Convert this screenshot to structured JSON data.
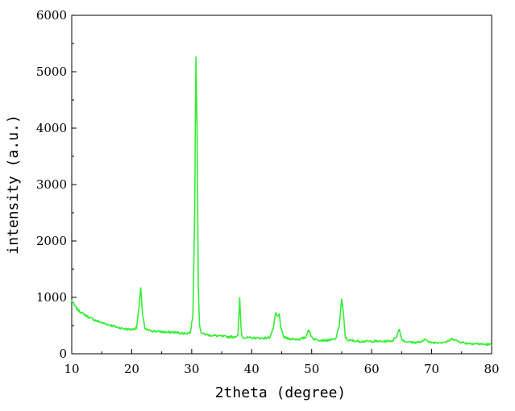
{
  "chart_data": {
    "type": "line",
    "title": "",
    "xlabel": "2theta (degree)",
    "ylabel": "intensity (a.u.)",
    "xlim": [
      10,
      80
    ],
    "ylim": [
      0,
      6000
    ],
    "x_ticks": [
      10,
      20,
      30,
      40,
      50,
      60,
      70,
      80
    ],
    "y_ticks": [
      0,
      1000,
      2000,
      3000,
      4000,
      5000,
      6000
    ],
    "x_tick_labels": [
      "10",
      "20",
      "30",
      "40",
      "50",
      "60",
      "70",
      "80"
    ],
    "y_tick_labels": [
      "0",
      "1000",
      "2000",
      "3000",
      "4000",
      "5000",
      "6000"
    ],
    "grid": false,
    "legend": "none",
    "series": [
      {
        "color": "#33ee33",
        "x": [
          10.0,
          10.5,
          11.0,
          12.0,
          13.0,
          14.0,
          15.0,
          16.0,
          17.0,
          18.0,
          19.0,
          20.0,
          20.8,
          21.2,
          21.5,
          21.8,
          22.2,
          23.0,
          24.0,
          25.0,
          26.0,
          27.0,
          28.0,
          29.0,
          29.8,
          30.2,
          30.5,
          30.7,
          30.9,
          31.1,
          31.3,
          31.6,
          32.0,
          33.0,
          34.0,
          35.0,
          36.0,
          37.0,
          37.7,
          38.0,
          38.2,
          38.4,
          38.8,
          40.0,
          41.0,
          42.0,
          43.0,
          43.6,
          44.0,
          44.3,
          44.6,
          44.9,
          45.3,
          46.0,
          47.0,
          48.0,
          49.0,
          49.4,
          49.7,
          50.0,
          50.4,
          51.0,
          52.0,
          53.0,
          54.0,
          54.6,
          55.0,
          55.3,
          55.6,
          56.0,
          57.0,
          58.0,
          60.0,
          62.0,
          63.5,
          64.2,
          64.6,
          65.0,
          65.5,
          67.0,
          68.5,
          69.0,
          69.5,
          71.0,
          72.5,
          73.5,
          74.2,
          75.5,
          77.0,
          78.5,
          80.0
        ],
        "y": [
          950,
          850,
          780,
          700,
          640,
          590,
          550,
          520,
          490,
          460,
          440,
          430,
          460,
          800,
          1180,
          700,
          440,
          410,
          400,
          390,
          380,
          380,
          370,
          360,
          380,
          700,
          2500,
          5280,
          4000,
          1200,
          500,
          380,
          350,
          330,
          320,
          310,
          300,
          300,
          320,
          980,
          500,
          300,
          290,
          280,
          280,
          275,
          290,
          450,
          720,
          650,
          700,
          450,
          300,
          270,
          260,
          260,
          290,
          420,
          380,
          300,
          260,
          250,
          240,
          240,
          260,
          500,
          970,
          700,
          300,
          240,
          230,
          220,
          220,
          220,
          230,
          320,
          440,
          260,
          220,
          200,
          210,
          280,
          200,
          200,
          210,
          270,
          230,
          190,
          180,
          170,
          160
        ]
      }
    ]
  }
}
